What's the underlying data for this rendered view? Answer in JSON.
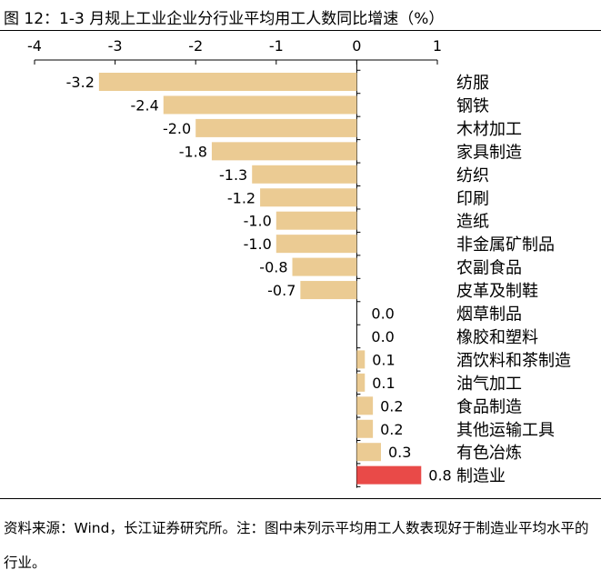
{
  "title": "图 12：1-3 月规上工业企业分行业平均用工人数同比增速（%）",
  "note": "资料来源：Wind，长江证券研究所。注：图中未列示平均用工人数表现好于制造业平均水平的行业。",
  "colors": {
    "bar": "#EBCB93",
    "highlight": "#E94A48",
    "axis": "#000000"
  },
  "chart_data": {
    "type": "bar",
    "orientation": "horizontal",
    "title": "1-3 月规上工业企业分行业平均用工人数同比增速（%）",
    "xlim": [
      -4,
      1
    ],
    "xticks": [
      -4,
      -3,
      -2,
      -1,
      0,
      1
    ],
    "axis_position": "top",
    "categories": [
      "纺服",
      "钢铁",
      "木材加工",
      "家具制造",
      "纺织",
      "印刷",
      "造纸",
      "非金属矿制品",
      "农副食品",
      "皮革及制鞋",
      "烟草制品",
      "橡胶和塑料",
      "酒饮料和茶制造",
      "油气加工",
      "食品制造",
      "其他运输工具",
      "有色冶炼",
      "制造业"
    ],
    "values": [
      -3.2,
      -2.4,
      -2.0,
      -1.8,
      -1.3,
      -1.2,
      -1.0,
      -1.0,
      -0.8,
      -0.7,
      0.0,
      0.0,
      0.1,
      0.1,
      0.2,
      0.2,
      0.3,
      0.8
    ],
    "value_labels": [
      "-3.2",
      "-2.4",
      "-2.0",
      "-1.8",
      "-1.3",
      "-1.2",
      "-1.0",
      "-1.0",
      "-0.8",
      "-0.7",
      "0.0",
      "0.0",
      "0.1",
      "0.1",
      "0.2",
      "0.2",
      "0.3",
      "0.8"
    ],
    "highlight_category": "制造业"
  }
}
